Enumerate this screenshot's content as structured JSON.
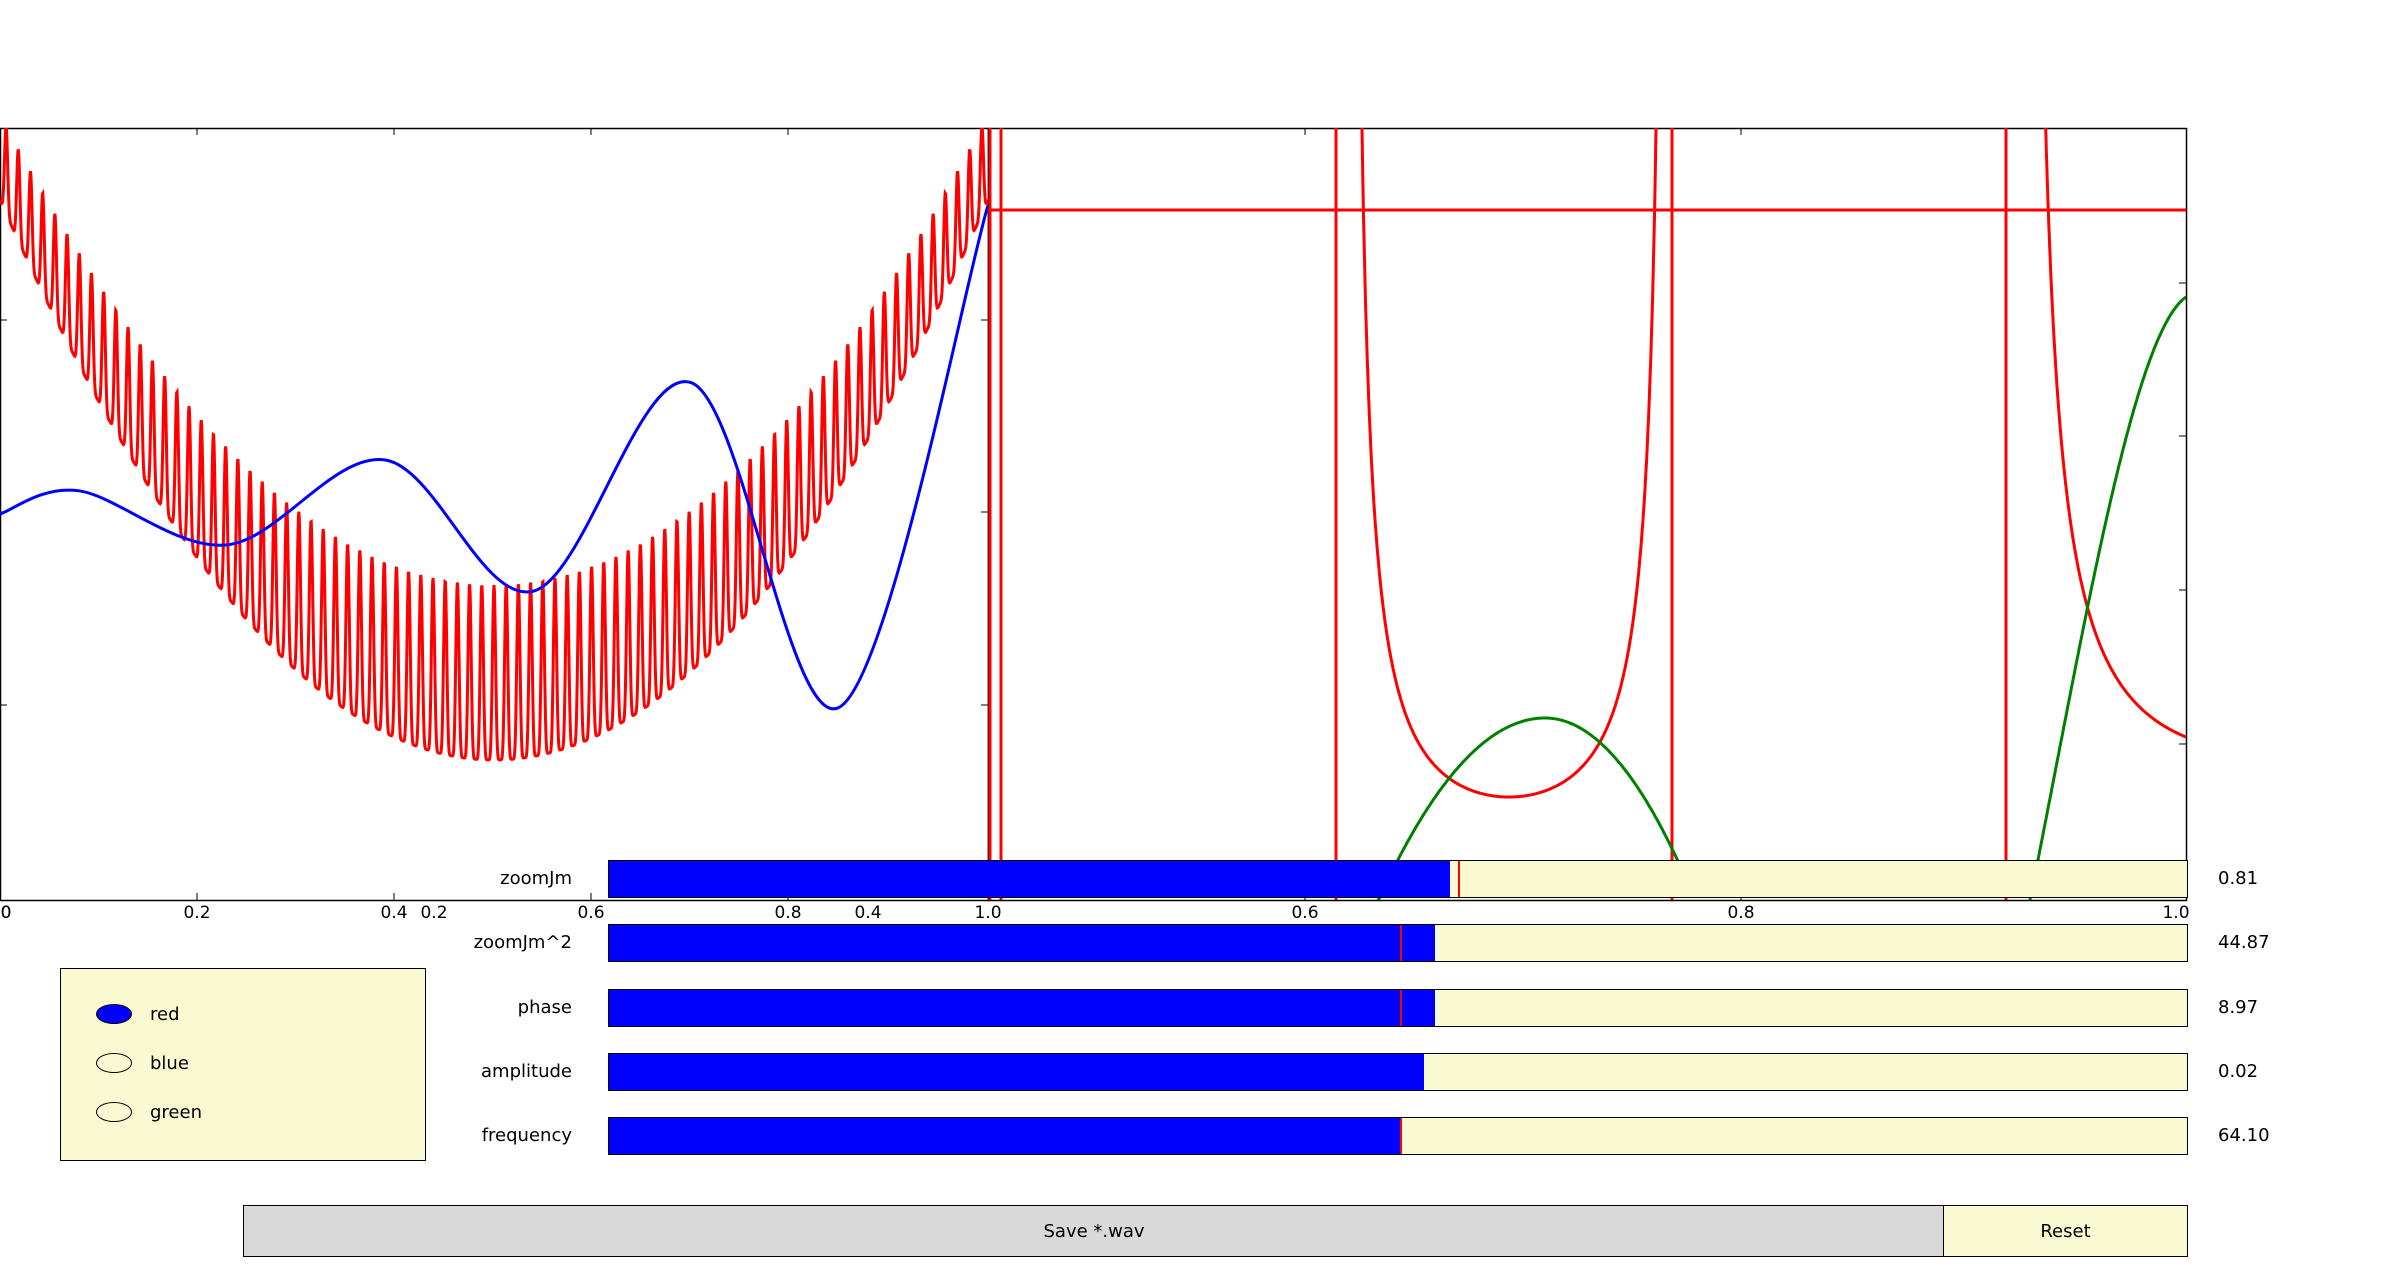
{
  "chart_data": [
    {
      "type": "line",
      "title": "",
      "xlabel": "",
      "ylabel": "",
      "xlim": [
        0,
        1.0
      ],
      "x_tick_labels": [
        "0",
        "0.2",
        "0.4",
        "0.6",
        "0.8",
        "1.0"
      ],
      "secondary_x_tick_labels": [
        "0",
        "0.2",
        "0.4"
      ],
      "grid": false,
      "series": [
        {
          "color": "#ff0000",
          "shape": "dense oscillation forming a parabolic band, minimum near x=0.5"
        },
        {
          "color": "#0000ff",
          "x": [
            0,
            0.08,
            0.23,
            0.39,
            0.54,
            0.7,
            0.85,
            1.0
          ],
          "y": [
            0.5,
            0.53,
            0.46,
            0.57,
            0.4,
            0.67,
            0.25,
            0.9
          ]
        }
      ]
    },
    {
      "type": "line",
      "title": "",
      "xlabel": "",
      "ylabel": "",
      "xlim": [
        0.6,
        1.0
      ],
      "x_tick_labels": [
        "0.6",
        "0.8",
        "1.0"
      ],
      "grid": false,
      "series": [
        {
          "color": "#ff0000",
          "shape": "vertical asymptote segments with U-shaped curves and a horizontal line"
        },
        {
          "color": "#008000",
          "shape": "hump between asymptotes, rising curve at right edge"
        }
      ]
    }
  ],
  "sliders": [
    {
      "label": "zoomJm",
      "value": "0.81",
      "fraction": 0.532,
      "initial": 0.538
    },
    {
      "label": "zoomJm^2",
      "value": "44.87",
      "fraction": 0.523,
      "initial": 0.501
    },
    {
      "label": "phase",
      "value": "8.97",
      "fraction": 0.523,
      "initial": 0.501
    },
    {
      "label": "amplitude",
      "value": "0.02",
      "fraction": 0.516,
      "initial": null
    },
    {
      "label": "frequency",
      "value": "64.10",
      "fraction": 0.501,
      "initial": 0.501
    }
  ],
  "radio": {
    "options": [
      "red",
      "blue",
      "green"
    ],
    "selected": "red"
  },
  "buttons": {
    "save": "Save *.wav",
    "reset": "Reset"
  },
  "colors": {
    "red": "#ff0000",
    "blue": "#0000ff",
    "green": "#008000",
    "panel": "#fafad2",
    "button": "#d9d9d9"
  }
}
